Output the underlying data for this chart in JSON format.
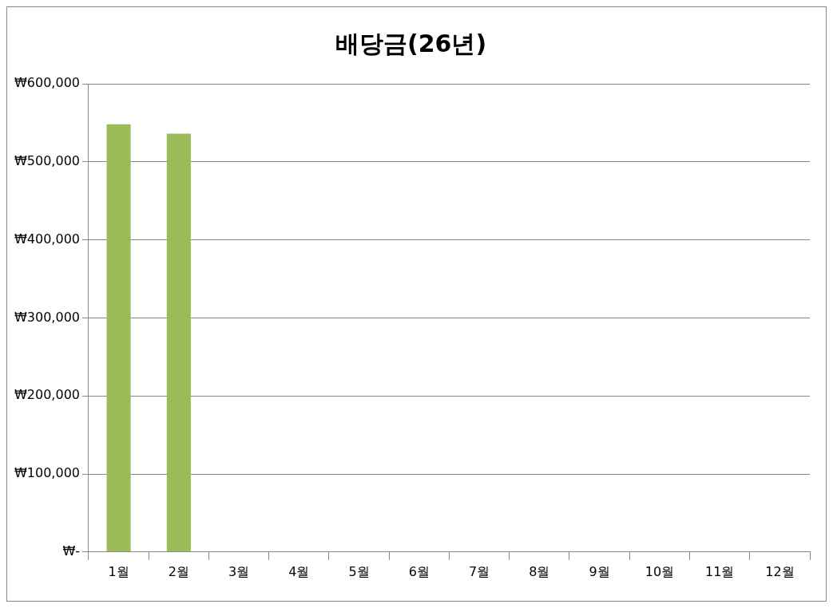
{
  "chart_data": {
    "type": "bar",
    "title": "배당금(26년)",
    "categories": [
      "1월",
      "2월",
      "3월",
      "4월",
      "5월",
      "6월",
      "7월",
      "8월",
      "9월",
      "10월",
      "11월",
      "12월"
    ],
    "values": [
      548000,
      536000,
      null,
      null,
      null,
      null,
      null,
      null,
      null,
      null,
      null,
      null
    ],
    "color": "#9bbb59",
    "ylim": [
      0,
      600000
    ],
    "yticks": [
      {
        "value": 0,
        "label": "₩-"
      },
      {
        "value": 100000,
        "label": "₩100,000"
      },
      {
        "value": 200000,
        "label": "₩200,000"
      },
      {
        "value": 300000,
        "label": "₩300,000"
      },
      {
        "value": 400000,
        "label": "₩400,000"
      },
      {
        "value": 500000,
        "label": "₩500,000"
      },
      {
        "value": 600000,
        "label": "₩600,000"
      }
    ],
    "grid": "y",
    "legend": false
  }
}
